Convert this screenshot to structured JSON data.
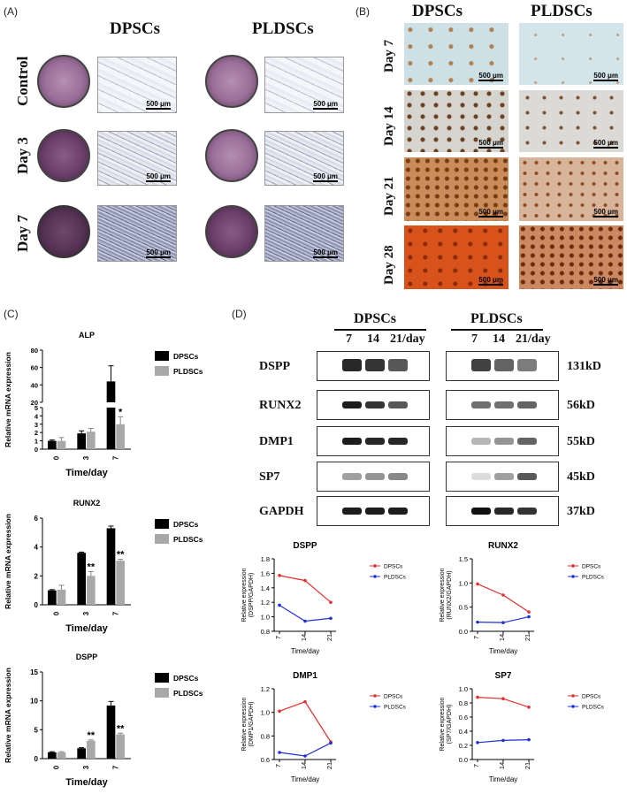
{
  "panels": {
    "A": "(A)",
    "B": "(B)",
    "C": "(C)",
    "D": "(D)"
  },
  "panelA": {
    "cols": [
      "DPSCs",
      "PLDSCs"
    ],
    "rows": [
      "Control",
      "Day 3",
      "Day 7"
    ],
    "scalebar": "500 μm"
  },
  "panelB": {
    "cols": [
      "DPSCs",
      "PLDSCs"
    ],
    "rows": [
      "Day 7",
      "Day 14",
      "Day 21",
      "Day 28"
    ],
    "scalebar": "500 μm"
  },
  "panelD_blot": {
    "groups": [
      "DPSCs",
      "PLDSCs"
    ],
    "lanes": [
      "7",
      "14",
      "21/day"
    ],
    "proteins": [
      "DSPP",
      "RUNX2",
      "DMP1",
      "SP7",
      "GAPDH"
    ],
    "sizes": [
      "131kD",
      "56kD",
      "55kD",
      "45kD",
      "37kD"
    ],
    "intensity_dpscs": [
      [
        0.9,
        0.85,
        0.7
      ],
      [
        0.95,
        0.85,
        0.7
      ],
      [
        0.95,
        0.9,
        0.9
      ],
      [
        0.4,
        0.45,
        0.5
      ],
      [
        0.95,
        0.95,
        0.95
      ]
    ],
    "intensity_pldscs": [
      [
        0.8,
        0.65,
        0.55
      ],
      [
        0.6,
        0.6,
        0.65
      ],
      [
        0.3,
        0.45,
        0.65
      ],
      [
        0.15,
        0.4,
        0.7
      ],
      [
        1.0,
        0.9,
        0.85
      ]
    ]
  },
  "chart_data": [
    {
      "type": "bar",
      "title": "ALP",
      "xlabel": "Time/day",
      "ylabel": "Relative mRNA expression",
      "categories": [
        "0",
        "3",
        "7"
      ],
      "yticks_lower": [
        "0",
        "1",
        "2",
        "3",
        "4",
        "5"
      ],
      "yticks_upper": [
        "20",
        "40",
        "60",
        "80"
      ],
      "axis_break": [
        5,
        20
      ],
      "ylim": [
        0,
        80
      ],
      "series": [
        {
          "name": "DPSCs",
          "values": [
            1.0,
            1.9,
            44
          ],
          "errors": [
            0.1,
            0.3,
            18
          ],
          "color": "#000000"
        },
        {
          "name": "PLDSCs",
          "values": [
            1.0,
            2.1,
            3.0
          ],
          "errors": [
            0.4,
            0.4,
            0.9
          ],
          "color": "#a8a8a8"
        }
      ],
      "annotations": [
        {
          "category": "7",
          "series": "PLDSCs",
          "text": "*"
        }
      ]
    },
    {
      "type": "bar",
      "title": "RUNX2",
      "xlabel": "Time/day",
      "ylabel": "Relative mRNA expression",
      "categories": [
        "0",
        "3",
        "7"
      ],
      "yticks": [
        "0",
        "2",
        "4",
        "6"
      ],
      "ylim": [
        0,
        6
      ],
      "series": [
        {
          "name": "DPSCs",
          "values": [
            1.0,
            3.6,
            5.3
          ],
          "errors": [
            0.05,
            0.05,
            0.15
          ],
          "color": "#000000"
        },
        {
          "name": "PLDSCs",
          "values": [
            1.05,
            2.0,
            3.05
          ],
          "errors": [
            0.3,
            0.3,
            0.1
          ],
          "color": "#a8a8a8"
        }
      ],
      "annotations": [
        {
          "category": "3",
          "series": "PLDSCs",
          "text": "**"
        },
        {
          "category": "7",
          "series": "PLDSCs",
          "text": "**"
        }
      ]
    },
    {
      "type": "bar",
      "title": "DSPP",
      "xlabel": "Time/day",
      "ylabel": "Relative mRNA expression",
      "categories": [
        "0",
        "3",
        "7"
      ],
      "yticks": [
        "0",
        "5",
        "10",
        "15"
      ],
      "ylim": [
        0,
        15
      ],
      "series": [
        {
          "name": "DPSCs",
          "values": [
            1.1,
            1.8,
            9.2
          ],
          "errors": [
            0.1,
            0.1,
            0.7
          ],
          "color": "#000000"
        },
        {
          "name": "PLDSCs",
          "values": [
            1.1,
            3.1,
            4.2
          ],
          "errors": [
            0.1,
            0.15,
            0.2
          ],
          "color": "#a8a8a8"
        }
      ],
      "annotations": [
        {
          "category": "3",
          "series": "PLDSCs",
          "text": "**"
        },
        {
          "category": "7",
          "series": "PLDSCs",
          "text": "**"
        }
      ]
    },
    {
      "type": "line",
      "title": "DSPP",
      "xlabel": "Time/day",
      "ylabel": "Relative expression (DSPP/GAPDH)",
      "x": [
        "7",
        "14",
        "21"
      ],
      "yticks": [
        "0.8",
        "1.0",
        "1.2",
        "1.4",
        "1.6",
        "1.8"
      ],
      "ylim": [
        0.8,
        1.8
      ],
      "series": [
        {
          "name": "DPSCs",
          "values": [
            1.57,
            1.5,
            1.2
          ],
          "color": "#e03030"
        },
        {
          "name": "PLDSCs",
          "values": [
            1.16,
            0.94,
            0.98
          ],
          "color": "#2030d0"
        }
      ]
    },
    {
      "type": "line",
      "title": "RUNX2",
      "xlabel": "Time/day",
      "ylabel": "Relative expression (RUNX2/GAPDH)",
      "x": [
        "7",
        "14",
        "21"
      ],
      "yticks": [
        "0.0",
        "0.5",
        "1.0",
        "1.5"
      ],
      "ylim": [
        0,
        1.5
      ],
      "series": [
        {
          "name": "DPSCs",
          "values": [
            0.98,
            0.75,
            0.4
          ],
          "color": "#e03030"
        },
        {
          "name": "PLDSCs",
          "values": [
            0.19,
            0.18,
            0.3
          ],
          "color": "#2030d0"
        }
      ]
    },
    {
      "type": "line",
      "title": "DMP1",
      "xlabel": "Time/day",
      "ylabel": "Relative expression (DMP1/GAPDH)",
      "x": [
        "7",
        "14",
        "21"
      ],
      "yticks": [
        "0.6",
        "0.8",
        "1.0",
        "1.2"
      ],
      "ylim": [
        0.6,
        1.2
      ],
      "series": [
        {
          "name": "DPSCs",
          "values": [
            1.01,
            1.09,
            0.75
          ],
          "color": "#e03030"
        },
        {
          "name": "PLDSCs",
          "values": [
            0.66,
            0.63,
            0.74
          ],
          "color": "#2030d0"
        }
      ]
    },
    {
      "type": "line",
      "title": "SP7",
      "xlabel": "Time/day",
      "ylabel": "Relative expression (SP7/GAPDH)",
      "x": [
        "7",
        "14",
        "21"
      ],
      "yticks": [
        "0.0",
        "0.2",
        "0.4",
        "0.6",
        "0.8",
        "1.0"
      ],
      "ylim": [
        0,
        1.0
      ],
      "series": [
        {
          "name": "DPSCs",
          "values": [
            0.88,
            0.86,
            0.74
          ],
          "color": "#e03030"
        },
        {
          "name": "PLDSCs",
          "values": [
            0.24,
            0.27,
            0.28
          ],
          "color": "#2030d0"
        }
      ]
    }
  ]
}
